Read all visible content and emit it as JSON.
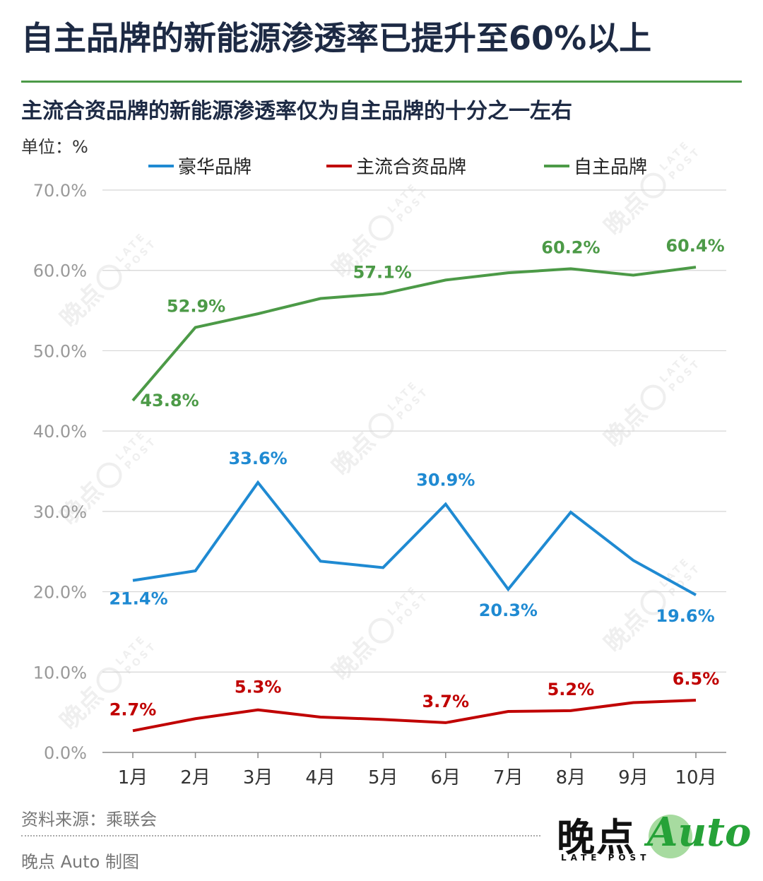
{
  "title": "自主品牌的新能源渗透率已提升至60%以上",
  "subtitle": "主流合资品牌的新能源渗透率仅为自主品牌的十分之一左右",
  "unit": "单位：%",
  "source": "资料来源：乘联会",
  "credit": "晚点 Auto 制图",
  "logo": {
    "cn": "晚点",
    "en": "LATE POST",
    "auto": "Auto"
  },
  "watermark": {
    "cn": "晚点",
    "en1": "LATE",
    "en2": "POST"
  },
  "colors": {
    "luxury": "#1f8ad2",
    "joint": "#c00000",
    "domestic": "#4c9a47",
    "grid": "#d5d5d5",
    "axis": "#888888"
  },
  "chart_data": {
    "type": "line",
    "title": "",
    "xlabel": "",
    "ylabel": "单位：%",
    "categories": [
      "1月",
      "2月",
      "3月",
      "4月",
      "5月",
      "6月",
      "7月",
      "8月",
      "9月",
      "10月"
    ],
    "ylim": [
      0,
      70
    ],
    "yticks": [
      "0.0%",
      "10.0%",
      "20.0%",
      "30.0%",
      "40.0%",
      "50.0%",
      "60.0%",
      "70.0%"
    ],
    "grid": true,
    "legend_position": "top",
    "series": [
      {
        "name": "豪华品牌",
        "color": "#1f8ad2",
        "values": [
          21.4,
          22.6,
          33.6,
          23.8,
          23.0,
          30.9,
          20.3,
          29.9,
          23.9,
          19.6
        ],
        "labels": [
          {
            "i": 0,
            "text": "21.4%"
          },
          {
            "i": 2,
            "text": "33.6%"
          },
          {
            "i": 5,
            "text": "30.9%"
          },
          {
            "i": 6,
            "text": "20.3%"
          },
          {
            "i": 9,
            "text": "19.6%"
          }
        ]
      },
      {
        "name": "主流合资品牌",
        "color": "#c00000",
        "values": [
          2.7,
          4.2,
          5.3,
          4.4,
          4.1,
          3.7,
          5.1,
          5.2,
          6.2,
          6.5
        ],
        "labels": [
          {
            "i": 0,
            "text": "2.7%"
          },
          {
            "i": 2,
            "text": "5.3%"
          },
          {
            "i": 5,
            "text": "3.7%"
          },
          {
            "i": 7,
            "text": "5.2%"
          },
          {
            "i": 9,
            "text": "6.5%"
          }
        ]
      },
      {
        "name": "自主品牌",
        "color": "#4c9a47",
        "values": [
          43.8,
          52.9,
          54.6,
          56.5,
          57.1,
          58.8,
          59.7,
          60.2,
          59.4,
          60.4
        ],
        "labels": [
          {
            "i": 0,
            "text": "43.8%"
          },
          {
            "i": 1,
            "text": "52.9%"
          },
          {
            "i": 4,
            "text": "57.1%"
          },
          {
            "i": 7,
            "text": "60.2%"
          },
          {
            "i": 9,
            "text": "60.4%"
          }
        ]
      }
    ]
  }
}
